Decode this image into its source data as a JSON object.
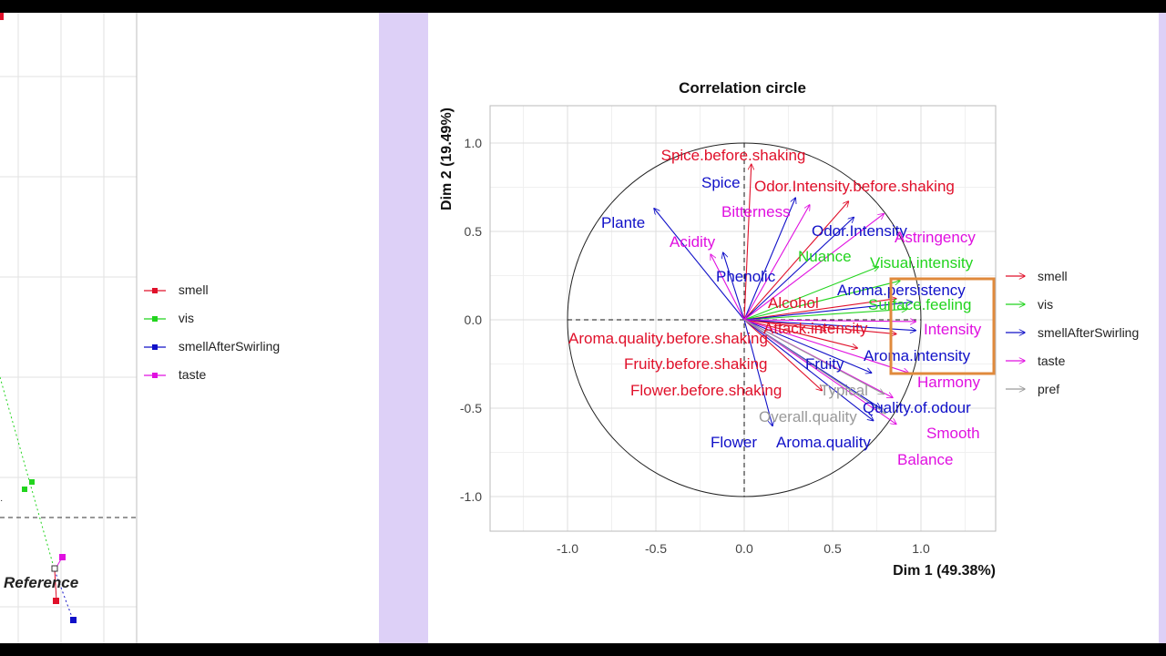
{
  "legend": {
    "items": [
      {
        "label": "smell",
        "color": "#e0102a"
      },
      {
        "label": "vis",
        "color": "#22d41e"
      },
      {
        "label": "smellAfterSwirling",
        "color": "#1010c8"
      },
      {
        "label": "taste",
        "color": "#e010e0"
      }
    ]
  },
  "left_plot": {
    "annotation": "Reference"
  },
  "chart_data": {
    "type": "scatter",
    "title": "Correlation circle",
    "xlabel": "Dim 1 (49.38%)",
    "ylabel": "Dim 2 (19.49%)",
    "xlim": [
      -1.4,
      1.45
    ],
    "ylim": [
      -1.2,
      1.2
    ],
    "x_ticks": [
      "-1.0",
      "-0.5",
      "0.0",
      "0.5",
      "1.0"
    ],
    "y_ticks": [
      "-1.0",
      "-0.5",
      "0.0",
      "0.5",
      "1.0"
    ],
    "grid": true,
    "legend_position": "right",
    "groups": [
      {
        "name": "smell",
        "color": "#e0102a"
      },
      {
        "name": "vis",
        "color": "#22d41e"
      },
      {
        "name": "smellAfterSwirling",
        "color": "#1010c8"
      },
      {
        "name": "taste",
        "color": "#e010e0"
      },
      {
        "name": "pref",
        "color": "#9a9a9a"
      }
    ],
    "variables": [
      {
        "label": "Spice.before.shaking",
        "group": "smell",
        "x": 0.04,
        "y": 0.88
      },
      {
        "label": "Odor.Intensity.before.shaking",
        "group": "smell",
        "x": 0.59,
        "y": 0.67
      },
      {
        "label": "Aroma.quality.before.shaking",
        "group": "smell",
        "x": 0.46,
        "y": -0.06
      },
      {
        "label": "Fruity.before.shaking",
        "group": "smell",
        "x": 0.64,
        "y": -0.16
      },
      {
        "label": "Flower.before.shaking",
        "group": "smell",
        "x": 0.44,
        "y": -0.4
      },
      {
        "label": "Attack.intensity",
        "group": "smell",
        "x": 0.86,
        "y": -0.08
      },
      {
        "label": "Alcohol",
        "group": "smell",
        "x": 0.86,
        "y": 0.12
      },
      {
        "label": "Nuance",
        "group": "vis",
        "x": 0.76,
        "y": 0.3
      },
      {
        "label": "Visual.intensity",
        "group": "vis",
        "x": 0.88,
        "y": 0.22
      },
      {
        "label": "Surface.feeling",
        "group": "vis",
        "x": 0.92,
        "y": 0.06
      },
      {
        "label": "Spice",
        "group": "smellAfterSwirling",
        "x": 0.29,
        "y": 0.69
      },
      {
        "label": "Plante",
        "group": "smellAfterSwirling",
        "x": -0.51,
        "y": 0.63
      },
      {
        "label": "Phenolic",
        "group": "smellAfterSwirling",
        "x": -0.12,
        "y": 0.38
      },
      {
        "label": "Odor.Intensity",
        "group": "smellAfterSwirling",
        "x": 0.62,
        "y": 0.58
      },
      {
        "label": "Aroma.persistency",
        "group": "smellAfterSwirling",
        "x": 0.95,
        "y": 0.1
      },
      {
        "label": "Aroma.intensity",
        "group": "smellAfterSwirling",
        "x": 0.97,
        "y": -0.06
      },
      {
        "label": "Fruity",
        "group": "smellAfterSwirling",
        "x": 0.72,
        "y": -0.3
      },
      {
        "label": "Quality.of.odour",
        "group": "smellAfterSwirling",
        "x": 0.77,
        "y": -0.5
      },
      {
        "label": "Flower",
        "group": "smellAfterSwirling",
        "x": 0.16,
        "y": -0.6
      },
      {
        "label": "Aroma.quality",
        "group": "smellAfterSwirling",
        "x": 0.73,
        "y": -0.57
      },
      {
        "label": "Bitterness",
        "group": "taste",
        "x": 0.37,
        "y": 0.65
      },
      {
        "label": "Acidity",
        "group": "taste",
        "x": -0.19,
        "y": 0.37
      },
      {
        "label": "Astringency",
        "group": "taste",
        "x": 0.79,
        "y": 0.6
      },
      {
        "label": "Intensity",
        "group": "taste",
        "x": 0.97,
        "y": -0.01
      },
      {
        "label": "Harmony",
        "group": "taste",
        "x": 0.93,
        "y": -0.3
      },
      {
        "label": "Smooth",
        "group": "taste",
        "x": 0.84,
        "y": -0.44
      },
      {
        "label": "Balance",
        "group": "taste",
        "x": 0.86,
        "y": -0.59
      },
      {
        "label": "Typical",
        "group": "pref",
        "x": 0.79,
        "y": -0.42
      },
      {
        "label": "Overall.quality",
        "group": "pref",
        "x": 0.8,
        "y": -0.53
      }
    ]
  }
}
